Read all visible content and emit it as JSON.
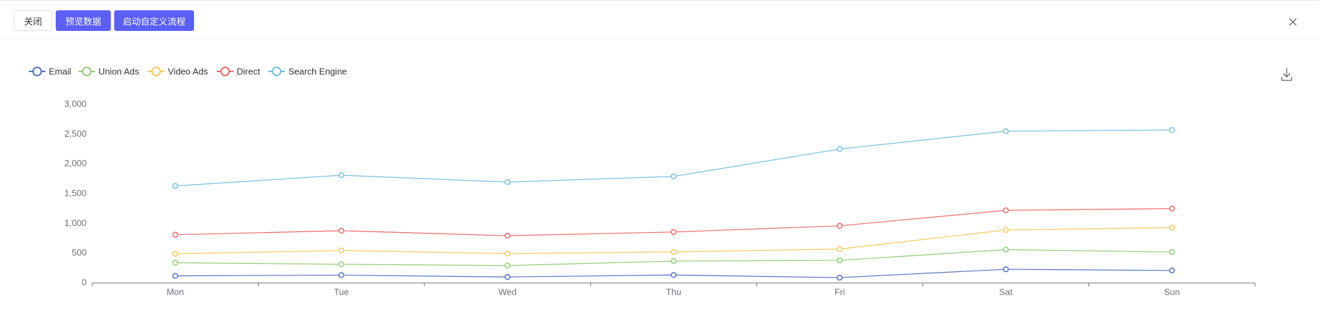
{
  "header": {
    "buttons": [
      "关闭",
      "预览数据",
      "启动自定义流程"
    ]
  },
  "chart_data": {
    "type": "line",
    "stacked": true,
    "grid": false,
    "legend": "top-left",
    "categories": [
      "Mon",
      "Tue",
      "Wed",
      "Thu",
      "Fri",
      "Sat",
      "Sun"
    ],
    "series": [
      {
        "name": "Email",
        "color": "#5470c6",
        "values": [
          120,
          132,
          101,
          134,
          90,
          230,
          210
        ]
      },
      {
        "name": "Union Ads",
        "color": "#91cc75",
        "values": [
          220,
          182,
          191,
          234,
          290,
          330,
          310
        ]
      },
      {
        "name": "Video Ads",
        "color": "#fac858",
        "values": [
          150,
          232,
          201,
          154,
          190,
          330,
          410
        ]
      },
      {
        "name": "Direct",
        "color": "#ee6666",
        "values": [
          320,
          332,
          301,
          334,
          390,
          330,
          320
        ]
      },
      {
        "name": "Search Engine",
        "color": "#73c0de",
        "values": [
          820,
          932,
          901,
          934,
          1290,
          1330,
          1320
        ]
      }
    ],
    "ylim": [
      0,
      3000
    ],
    "yticks": [
      0,
      500,
      {
        "value": 1000,
        "label": "1,000"
      },
      {
        "value": 1500,
        "label": "1,500"
      },
      {
        "value": 2000,
        "label": "2,000"
      },
      {
        "value": 2500,
        "label": "2,500"
      },
      {
        "value": 3000,
        "label": "3,000"
      }
    ]
  }
}
